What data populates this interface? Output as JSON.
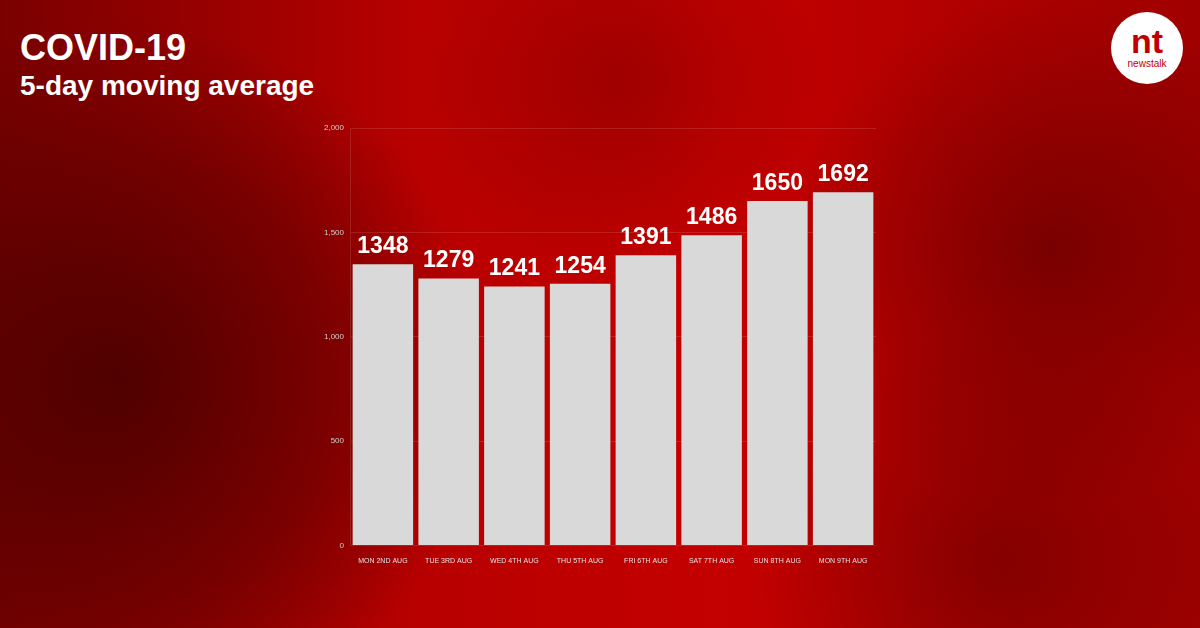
{
  "chart_data": {
    "type": "bar",
    "title": "COVID-19",
    "subtitle": "5-day moving average",
    "annotations": [
      "nt",
      "newstalk"
    ],
    "categories": [
      "MON 2ND AUG",
      "TUE 3RD AUG",
      "WED 4TH AUG",
      "THU 5TH AUG",
      "FRI 6TH AUG",
      "SAT 7TH AUG",
      "SUN 8TH AUG",
      "MON 9TH AUG"
    ],
    "values": [
      1348,
      1279,
      1241,
      1254,
      1391,
      1486,
      1650,
      1692
    ],
    "color": "#d9d9d9",
    "ylim": [
      0,
      2000
    ],
    "yticks": [
      0,
      500,
      {
        "value": 1000,
        "label": "1,000"
      },
      {
        "value": 1500,
        "label": "1,500"
      },
      {
        "value": 2000,
        "label": "2,000"
      }
    ],
    "grid": true,
    "data_labels": true
  }
}
